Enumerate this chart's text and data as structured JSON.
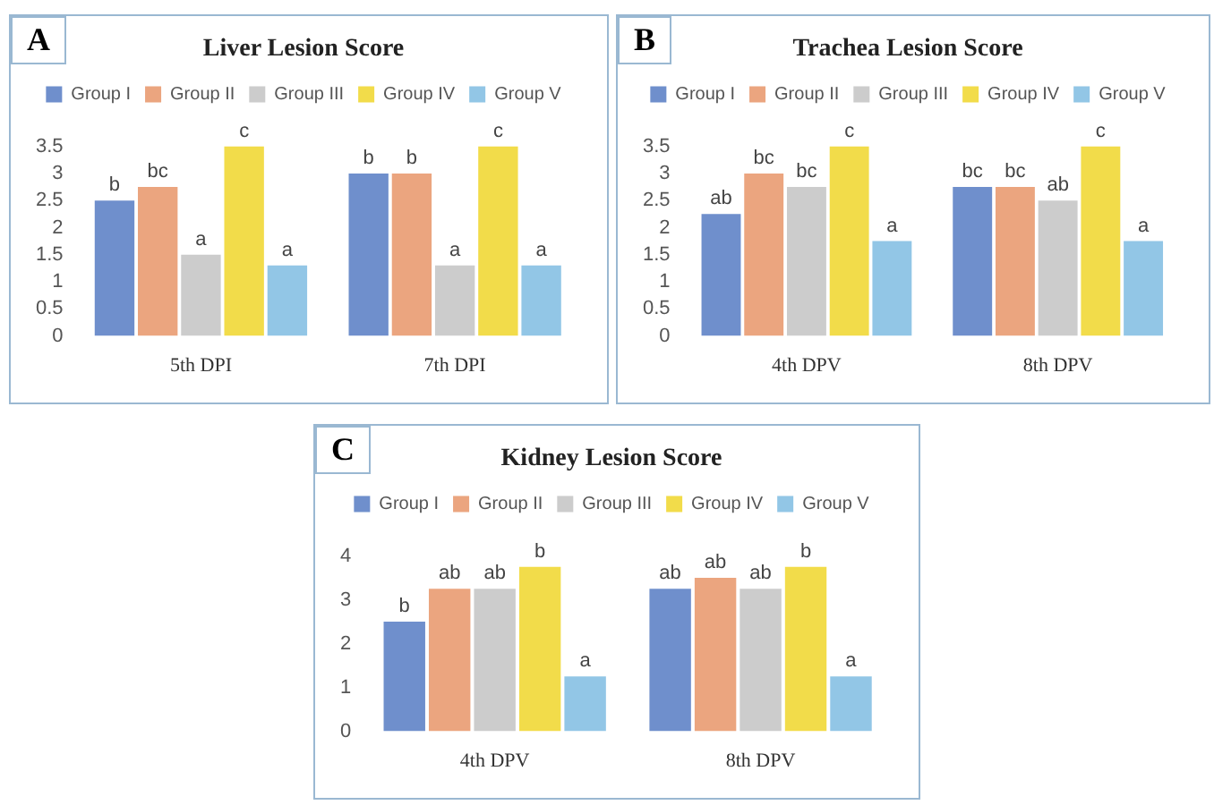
{
  "chart_data": [
    {
      "type": "bar",
      "title": "Liver Lesion Score",
      "annotations": [
        "A"
      ],
      "categories": [
        "5th DPI",
        "7th DPI"
      ],
      "ylim": [
        0,
        3.5
      ],
      "yticks": [
        0,
        0.5,
        1,
        1.5,
        2,
        2.5,
        3,
        3.5
      ],
      "grid": false,
      "legend": "top",
      "series": [
        {
          "name": "Group I",
          "color": "#6f8fcc",
          "values": [
            2.5,
            3.0
          ],
          "value_labels": [
            "b",
            "b"
          ]
        },
        {
          "name": "Group II",
          "color": "#eba57f",
          "values": [
            2.75,
            3.0
          ],
          "value_labels": [
            "bc",
            "b"
          ]
        },
        {
          "name": "Group III",
          "color": "#cccccc",
          "values": [
            1.5,
            1.3
          ],
          "value_labels": [
            "a",
            "a"
          ]
        },
        {
          "name": "Group IV",
          "color": "#f2dc4a",
          "values": [
            3.5,
            3.5
          ],
          "value_labels": [
            "c",
            "c"
          ]
        },
        {
          "name": "Group V",
          "color": "#92c6e6",
          "values": [
            1.3,
            1.3
          ],
          "value_labels": [
            "a",
            "a"
          ]
        }
      ]
    },
    {
      "type": "bar",
      "title": "Trachea Lesion Score",
      "annotations": [
        "B"
      ],
      "categories": [
        "4th DPV",
        "8th DPV"
      ],
      "ylim": [
        0,
        3.5
      ],
      "yticks": [
        0,
        0.5,
        1,
        1.5,
        2,
        2.5,
        3,
        3.5
      ],
      "grid": false,
      "legend": "top",
      "series": [
        {
          "name": "Group I",
          "color": "#6f8fcc",
          "values": [
            2.25,
            2.75
          ],
          "value_labels": [
            "ab",
            "bc"
          ]
        },
        {
          "name": "Group II",
          "color": "#eba57f",
          "values": [
            3.0,
            2.75
          ],
          "value_labels": [
            "bc",
            "bc"
          ]
        },
        {
          "name": "Group III",
          "color": "#cccccc",
          "values": [
            2.75,
            2.5
          ],
          "value_labels": [
            "bc",
            "ab"
          ]
        },
        {
          "name": "Group IV",
          "color": "#f2dc4a",
          "values": [
            3.5,
            3.5
          ],
          "value_labels": [
            "c",
            "c"
          ]
        },
        {
          "name": "Group V",
          "color": "#92c6e6",
          "values": [
            1.75,
            1.75
          ],
          "value_labels": [
            "a",
            "a"
          ]
        }
      ]
    },
    {
      "type": "bar",
      "title": "Kidney Lesion Score",
      "annotations": [
        "C"
      ],
      "categories": [
        "4th DPV",
        "8th DPV"
      ],
      "ylim": [
        0,
        4
      ],
      "yticks": [
        0,
        1,
        2,
        3,
        4
      ],
      "grid": false,
      "legend": "top",
      "series": [
        {
          "name": "Group I",
          "color": "#6f8fcc",
          "values": [
            2.5,
            3.25
          ],
          "value_labels": [
            "b",
            "ab"
          ]
        },
        {
          "name": "Group II",
          "color": "#eba57f",
          "values": [
            3.25,
            3.5
          ],
          "value_labels": [
            "ab",
            "ab"
          ]
        },
        {
          "name": "Group III",
          "color": "#cccccc",
          "values": [
            3.25,
            3.25
          ],
          "value_labels": [
            "ab",
            "ab"
          ]
        },
        {
          "name": "Group IV",
          "color": "#f2dc4a",
          "values": [
            3.75,
            3.75
          ],
          "value_labels": [
            "b",
            "b"
          ]
        },
        {
          "name": "Group V",
          "color": "#92c6e6",
          "values": [
            1.25,
            1.25
          ],
          "value_labels": [
            "a",
            "a"
          ]
        }
      ]
    }
  ]
}
